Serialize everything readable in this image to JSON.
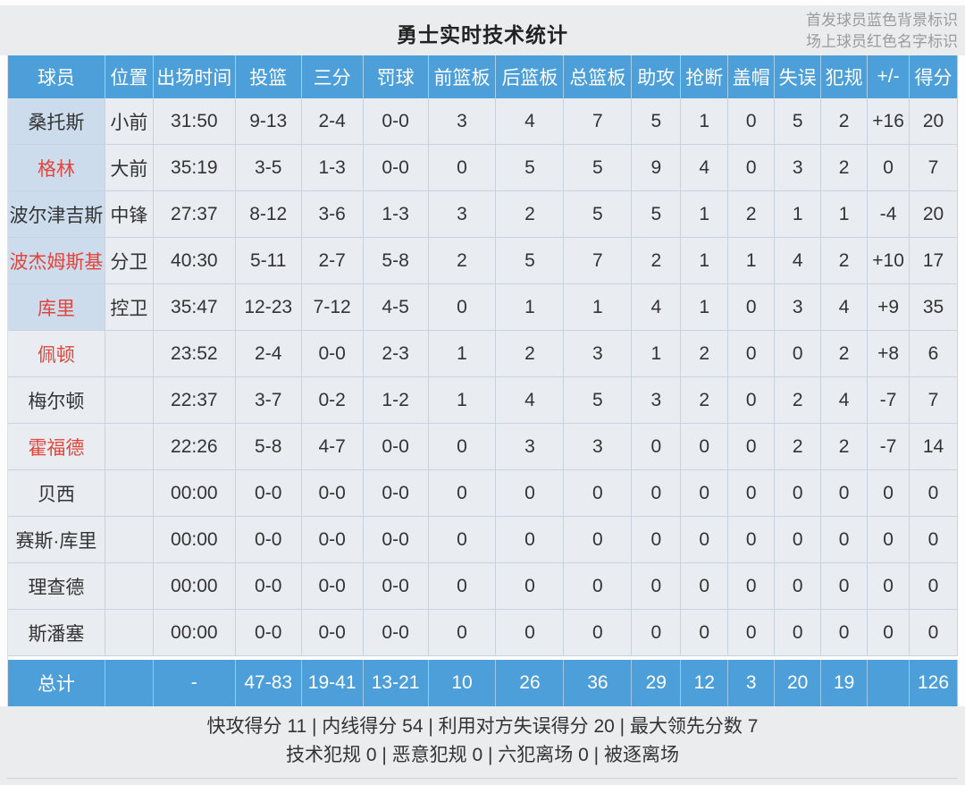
{
  "page": {
    "title": "勇士实时技术统计",
    "note1": "首发球员蓝色背景标识",
    "note2": "场上球员红色名字标识"
  },
  "colors": {
    "header_blue": "#4d9fd9",
    "starter_cell_blue": "#cddcec",
    "oncourt_red": "#e2453c"
  },
  "table": {
    "headers": [
      "球员",
      "位置",
      "出场时间",
      "投篮",
      "三分",
      "罚球",
      "前篮板",
      "后篮板",
      "总篮板",
      "助攻",
      "抢断",
      "盖帽",
      "失误",
      "犯规",
      "+/-",
      "得分"
    ],
    "rows": [
      {
        "starter": true,
        "oncourt": false,
        "cells": [
          "桑托斯",
          "小前",
          "31:50",
          "9-13",
          "2-4",
          "0-0",
          "3",
          "4",
          "7",
          "5",
          "1",
          "0",
          "5",
          "2",
          "+16",
          "20"
        ]
      },
      {
        "starter": true,
        "oncourt": true,
        "cells": [
          "格林",
          "大前",
          "35:19",
          "3-5",
          "1-3",
          "0-0",
          "0",
          "5",
          "5",
          "9",
          "4",
          "0",
          "3",
          "2",
          "0",
          "7"
        ]
      },
      {
        "starter": true,
        "oncourt": false,
        "cells": [
          "波尔津吉斯",
          "中锋",
          "27:37",
          "8-12",
          "3-6",
          "1-3",
          "3",
          "2",
          "5",
          "5",
          "1",
          "2",
          "1",
          "1",
          "-4",
          "20"
        ]
      },
      {
        "starter": true,
        "oncourt": true,
        "cells": [
          "波杰姆斯基",
          "分卫",
          "40:30",
          "5-11",
          "2-7",
          "5-8",
          "2",
          "5",
          "7",
          "2",
          "1",
          "1",
          "4",
          "2",
          "+10",
          "17"
        ]
      },
      {
        "starter": true,
        "oncourt": true,
        "cells": [
          "库里",
          "控卫",
          "35:47",
          "12-23",
          "7-12",
          "4-5",
          "0",
          "1",
          "1",
          "4",
          "1",
          "0",
          "3",
          "4",
          "+9",
          "35"
        ]
      },
      {
        "starter": false,
        "oncourt": true,
        "cells": [
          "佩顿",
          "",
          "23:52",
          "2-4",
          "0-0",
          "2-3",
          "1",
          "2",
          "3",
          "1",
          "2",
          "0",
          "0",
          "2",
          "+8",
          "6"
        ]
      },
      {
        "starter": false,
        "oncourt": false,
        "cells": [
          "梅尔顿",
          "",
          "22:37",
          "3-7",
          "0-2",
          "1-2",
          "1",
          "4",
          "5",
          "3",
          "2",
          "0",
          "2",
          "4",
          "-7",
          "7"
        ]
      },
      {
        "starter": false,
        "oncourt": true,
        "cells": [
          "霍福德",
          "",
          "22:26",
          "5-8",
          "4-7",
          "0-0",
          "0",
          "3",
          "3",
          "0",
          "0",
          "0",
          "2",
          "2",
          "-7",
          "14"
        ]
      },
      {
        "starter": false,
        "oncourt": false,
        "cells": [
          "贝西",
          "",
          "00:00",
          "0-0",
          "0-0",
          "0-0",
          "0",
          "0",
          "0",
          "0",
          "0",
          "0",
          "0",
          "0",
          "0",
          "0"
        ]
      },
      {
        "starter": false,
        "oncourt": false,
        "cells": [
          "赛斯·库里",
          "",
          "00:00",
          "0-0",
          "0-0",
          "0-0",
          "0",
          "0",
          "0",
          "0",
          "0",
          "0",
          "0",
          "0",
          "0",
          "0"
        ]
      },
      {
        "starter": false,
        "oncourt": false,
        "cells": [
          "理查德",
          "",
          "00:00",
          "0-0",
          "0-0",
          "0-0",
          "0",
          "0",
          "0",
          "0",
          "0",
          "0",
          "0",
          "0",
          "0",
          "0"
        ]
      },
      {
        "starter": false,
        "oncourt": false,
        "cells": [
          "斯潘塞",
          "",
          "00:00",
          "0-0",
          "0-0",
          "0-0",
          "0",
          "0",
          "0",
          "0",
          "0",
          "0",
          "0",
          "0",
          "0",
          "0"
        ]
      }
    ],
    "totals": {
      "cells": [
        "总计",
        "",
        "-",
        "47-83",
        "19-41",
        "13-21",
        "10",
        "26",
        "36",
        "29",
        "12",
        "3",
        "20",
        "19",
        "",
        "126"
      ]
    }
  },
  "footer": {
    "line1": "快攻得分 11 | 内线得分 54 | 利用对方失误得分 20 | 最大领先分数 7",
    "line2": "技术犯规 0 | 恶意犯规 0 | 六犯离场 0 | 被逐离场"
  }
}
